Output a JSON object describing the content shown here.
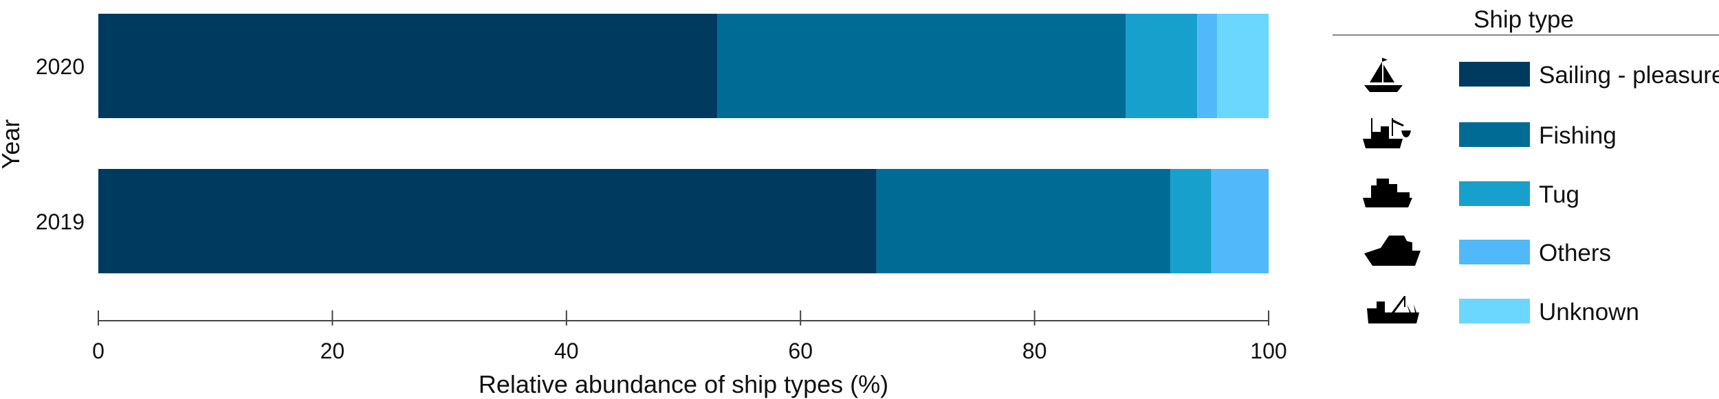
{
  "chart_data": {
    "type": "bar",
    "orientation": "horizontal",
    "stacked": true,
    "categories": [
      "2020",
      "2019"
    ],
    "series": [
      {
        "name": "Sailing - pleasure",
        "color": "#003a5f",
        "icon": "sailboat-icon",
        "values": [
          52.9,
          66.5
        ]
      },
      {
        "name": "Fishing",
        "color": "#006c95",
        "icon": "fishing-boat-icon",
        "values": [
          34.9,
          25.1
        ]
      },
      {
        "name": "Tug",
        "color": "#18a0cc",
        "icon": "tugboat-icon",
        "values": [
          6.1,
          3.5
        ]
      },
      {
        "name": "Others",
        "color": "#51b9f9",
        "icon": "yacht-icon",
        "values": [
          1.7,
          4.9
        ]
      },
      {
        "name": "Unknown",
        "color": "#6bd7ff",
        "icon": "crane-vessel-icon",
        "values": [
          4.4,
          0
        ]
      }
    ],
    "xlabel": "Relative abundance of ship types (%)",
    "ylabel": "Year",
    "xlim": [
      0,
      100
    ],
    "xticks": [
      0,
      20,
      40,
      60,
      80,
      100
    ],
    "grid": false,
    "legend": {
      "title": "Ship type",
      "placement": "right"
    }
  }
}
